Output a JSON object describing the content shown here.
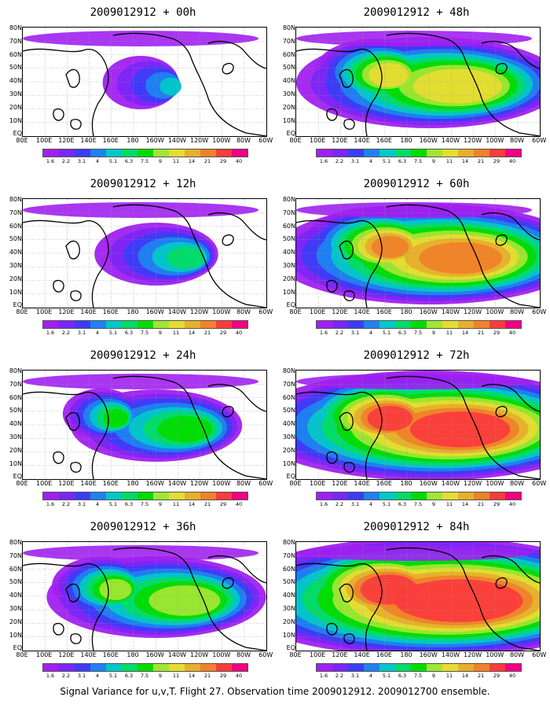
{
  "colorbar": {
    "colors": [
      "#a020f0",
      "#7b26f5",
      "#3c3cf5",
      "#1e82f0",
      "#00c8c8",
      "#00dc64",
      "#00dc00",
      "#a0e632",
      "#e6dc32",
      "#e6af2d",
      "#f08228",
      "#fa3c3c",
      "#f00082"
    ],
    "labels": [
      "1.6",
      "2.2",
      "3.1",
      "4",
      "5.1",
      "6.3",
      "7.5",
      "9",
      "11",
      "14",
      "21",
      "29",
      "40"
    ]
  },
  "axes": {
    "lat_labels": [
      "80N",
      "70N",
      "60N",
      "50N",
      "40N",
      "30N",
      "20N",
      "10N",
      "EQ"
    ],
    "lon_labels": [
      "80E",
      "100E",
      "120E",
      "140E",
      "160E",
      "180",
      "160W",
      "140W",
      "120W",
      "100W",
      "80W",
      "60W"
    ]
  },
  "panels": [
    {
      "title": "2009012912 + 00h",
      "level": 1
    },
    {
      "title": "2009012912 + 48h",
      "level": 5
    },
    {
      "title": "2009012912 + 12h",
      "level": 2
    },
    {
      "title": "2009012912 + 60h",
      "level": 6
    },
    {
      "title": "2009012912 + 24h",
      "level": 3
    },
    {
      "title": "2009012912 + 72h",
      "level": 7
    },
    {
      "title": "2009012912 + 36h",
      "level": 4
    },
    {
      "title": "2009012912 + 84h",
      "level": 8
    }
  ],
  "footer": "Signal Variance for u,v,T. Flight 27. Observation time 2009012912. 2009012700 ensemble."
}
